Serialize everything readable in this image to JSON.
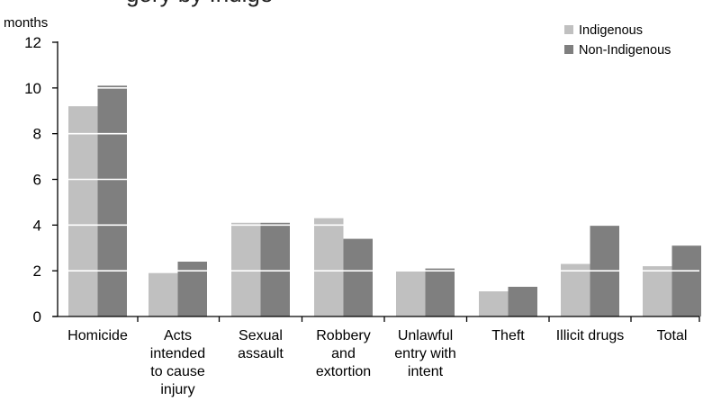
{
  "chart_data": {
    "type": "bar",
    "title_fragment": "gory by Indige",
    "ylabel": "months",
    "ylim": [
      0,
      12
    ],
    "yticks": [
      0,
      2,
      4,
      6,
      8,
      10,
      12
    ],
    "grid": "horizontal white lines over bars",
    "legend_placement": "top-right",
    "categories": [
      [
        "Homicide"
      ],
      [
        "Acts",
        "intended",
        "to cause",
        "injury"
      ],
      [
        "Sexual",
        "assault"
      ],
      [
        "Robbery",
        "and",
        "extortion"
      ],
      [
        "Unlawful",
        "entry with",
        "intent"
      ],
      [
        "Theft"
      ],
      [
        "Illicit drugs"
      ],
      [
        "Total"
      ]
    ],
    "series": [
      {
        "name": "Indigenous",
        "color": "#c0c0c0",
        "values": [
          9.2,
          1.9,
          4.1,
          4.3,
          2.0,
          1.1,
          2.3,
          2.2
        ]
      },
      {
        "name": "Non-Indigenous",
        "color": "#7f7f7f",
        "values": [
          10.1,
          2.4,
          4.1,
          3.4,
          2.1,
          1.3,
          4.0,
          3.1
        ]
      }
    ]
  }
}
